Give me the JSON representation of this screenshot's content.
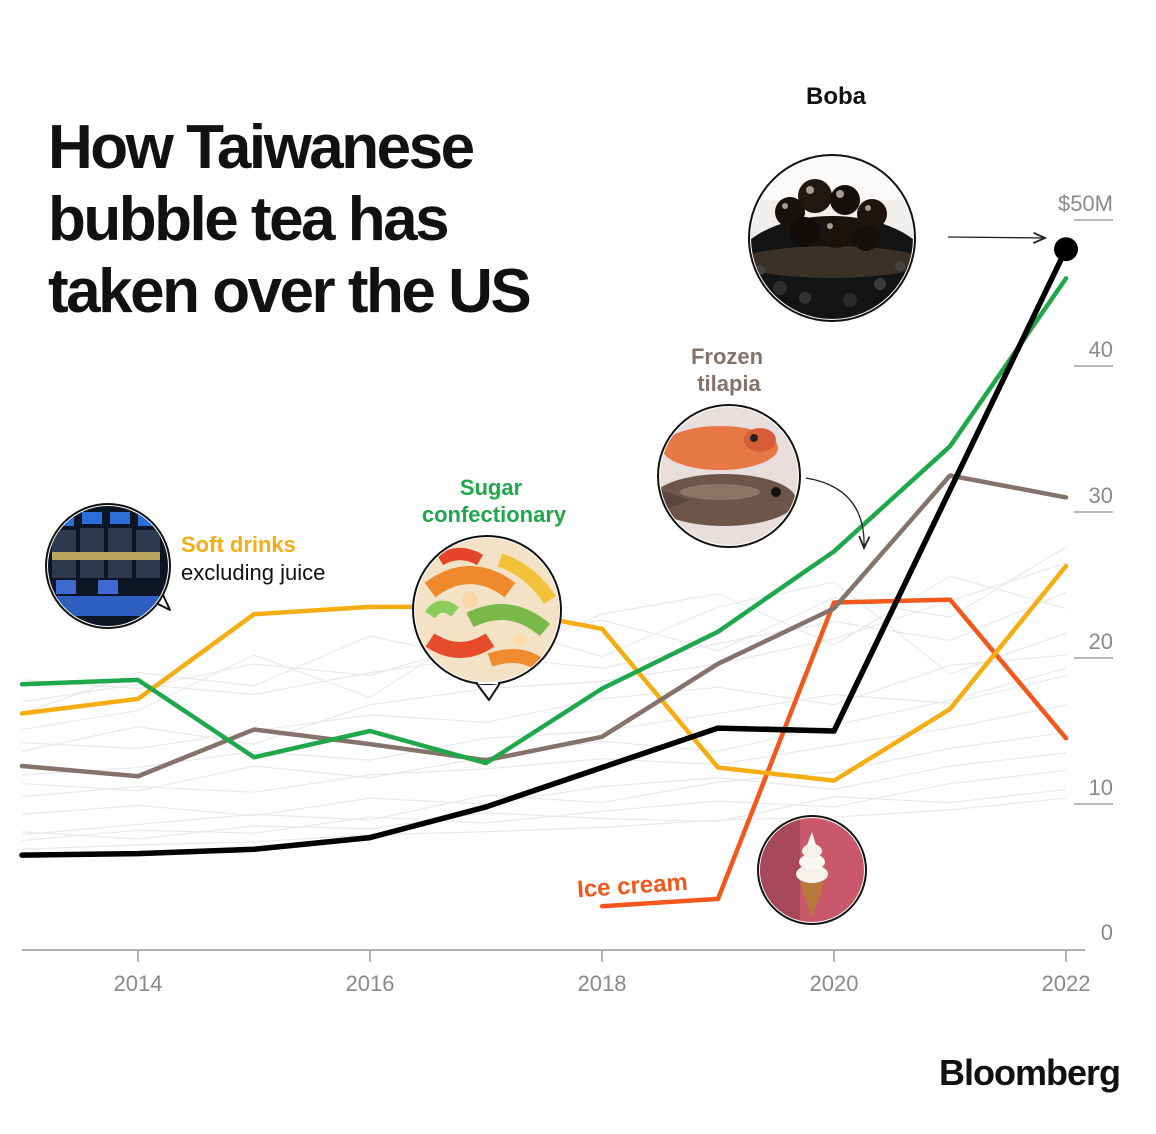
{
  "title": "How Taiwanese bubble tea has taken over the US",
  "brand": "Bloomberg",
  "colors": {
    "boba": "#000000",
    "sugar_confectionary": "#1fa84b",
    "frozen_tilapia": "#85726a",
    "soft_drinks": "#f5ad12",
    "ice_cream": "#f2571b",
    "background_lines": "#e9e9e9",
    "axis": "#999999"
  },
  "chart_data": {
    "type": "line",
    "x": [
      2013,
      2014,
      2015,
      2016,
      2017,
      2018,
      2019,
      2020,
      2021,
      2022
    ],
    "xlim": [
      2013,
      2022
    ],
    "ylim": [
      0,
      50
    ],
    "x_ticks": [
      "2014",
      "2016",
      "2018",
      "2020",
      "2022"
    ],
    "y_ticks": [
      "0",
      "10",
      "20",
      "30",
      "40",
      "$50M"
    ],
    "y_tick_values": [
      0,
      10,
      20,
      30,
      40,
      50
    ],
    "grid": false,
    "series": [
      {
        "key": "ice_cream",
        "name": "Ice cream",
        "x": [
          2018,
          2019,
          2020,
          2021,
          2022
        ],
        "values": [
          3.0,
          3.5,
          23.8,
          24.0,
          14.5
        ]
      },
      {
        "key": "soft_drinks",
        "name": "Soft drinks",
        "x": [
          2013,
          2014,
          2015,
          2016,
          2017,
          2018,
          2019,
          2020,
          2021,
          2022
        ],
        "values": [
          16.2,
          17.2,
          23.0,
          23.5,
          23.5,
          22.0,
          12.5,
          11.6,
          16.5,
          26.3
        ]
      },
      {
        "key": "frozen_tilapia",
        "name": "Frozen tilapia",
        "x": [
          2013,
          2014,
          2015,
          2016,
          2017,
          2018,
          2019,
          2020,
          2021,
          2022
        ],
        "values": [
          12.6,
          11.9,
          15.1,
          14.1,
          13.0,
          14.6,
          19.6,
          23.4,
          32.5,
          31.0
        ]
      },
      {
        "key": "sugar_confectionary",
        "name": "Sugar confectionary",
        "x": [
          2013,
          2014,
          2015,
          2016,
          2017,
          2018,
          2019,
          2020,
          2021,
          2022
        ],
        "values": [
          18.2,
          18.5,
          13.2,
          15.0,
          12.8,
          17.9,
          21.8,
          27.3,
          34.5,
          46.0
        ]
      },
      {
        "key": "boba",
        "name": "Boba",
        "x": [
          2013,
          2014,
          2015,
          2016,
          2017,
          2018,
          2019,
          2020,
          2021,
          2022
        ],
        "values": [
          6.5,
          6.6,
          6.9,
          7.7,
          9.8,
          12.5,
          15.2,
          15.0,
          31.5,
          48.0
        ]
      }
    ],
    "background_series": [
      [
        7.5,
        8.2,
        8.0,
        9.1,
        8.7,
        9.5,
        10.2,
        9.8,
        11.4,
        12.3
      ],
      [
        8.1,
        7.6,
        8.5,
        8.3,
        9.4,
        9.0,
        8.8,
        10.5,
        10.1,
        11.0
      ],
      [
        9.3,
        9.9,
        9.2,
        10.4,
        10.0,
        11.2,
        11.8,
        11.0,
        12.6,
        13.5
      ],
      [
        6.9,
        7.2,
        7.4,
        7.9,
        8.1,
        8.4,
        8.9,
        9.1,
        9.6,
        10.4
      ],
      [
        10.5,
        11.2,
        10.8,
        12.0,
        12.4,
        13.1,
        12.7,
        14.0,
        15.2,
        16.8
      ],
      [
        12.0,
        12.5,
        13.6,
        13.0,
        14.5,
        15.0,
        16.2,
        17.5,
        16.9,
        18.8
      ],
      [
        14.2,
        13.8,
        15.0,
        16.1,
        15.6,
        17.2,
        18.0,
        16.8,
        19.5,
        20.2
      ],
      [
        17.0,
        18.2,
        17.5,
        19.0,
        20.1,
        19.3,
        21.0,
        22.5,
        21.2,
        24.5
      ],
      [
        18.5,
        17.9,
        19.6,
        18.8,
        21.2,
        22.6,
        20.5,
        24.1,
        22.8,
        27.6
      ],
      [
        16.2,
        19.0,
        18.1,
        21.5,
        19.8,
        23.0,
        24.4,
        20.9,
        25.6,
        23.4
      ],
      [
        15.1,
        16.4,
        20.2,
        17.3,
        22.4,
        20.1,
        23.5,
        25.2,
        18.9,
        21.7
      ],
      [
        13.6,
        15.3,
        14.1,
        16.8,
        17.9,
        18.4,
        19.6,
        21.3,
        23.9,
        26.5
      ],
      [
        11.4,
        10.9,
        12.6,
        11.8,
        13.2,
        14.3,
        13.6,
        15.4,
        17.1,
        19.3
      ],
      [
        7.9,
        8.6,
        9.3,
        8.9,
        10.6,
        10.1,
        11.5,
        12.2,
        13.8,
        14.9
      ]
    ],
    "labels": {
      "boba": "Boba",
      "sugar_1": "Sugar",
      "sugar_2": "confectionary",
      "tilapia_1": "Frozen",
      "tilapia_2": "tilapia",
      "soft_1": "Soft drinks",
      "soft_2": "excluding juice",
      "ice_cream": "Ice cream"
    }
  }
}
